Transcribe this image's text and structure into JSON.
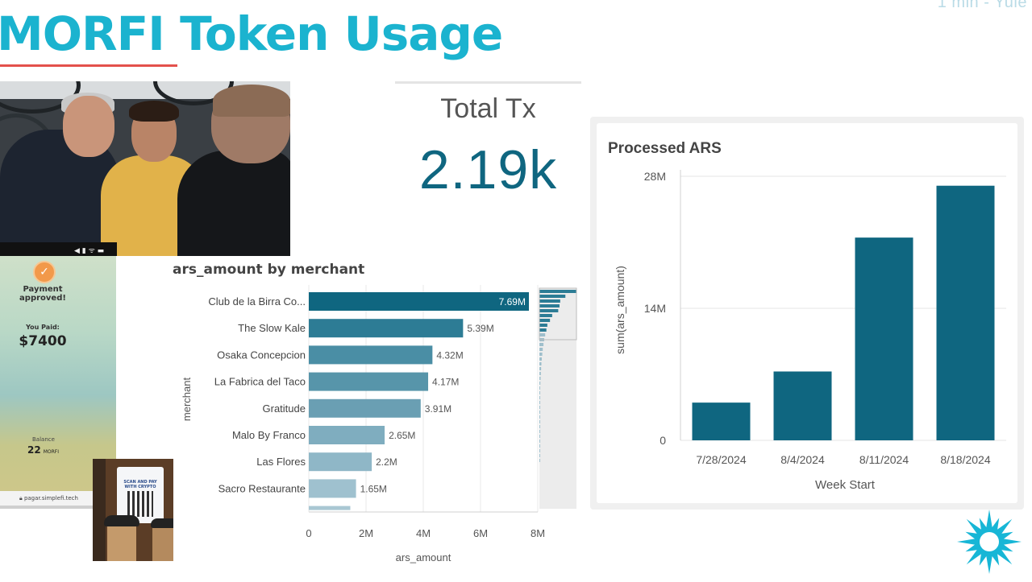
{
  "header": {
    "title": "MORFI Token Usage",
    "corner_text": "1 min - Yule"
  },
  "photo": {
    "status_icons": "◀  ▮  ᯤ ▬"
  },
  "phone": {
    "status_title": "Payment approved!",
    "you_paid_label": "You Paid:",
    "amount": "$7400",
    "balance_label": "Balance",
    "balance_value": "22",
    "balance_unit": "MORFI",
    "url": "pagar.simplefi.tech"
  },
  "cafe": {
    "sign_text": "SCAN AND PAY WITH CRYPTO"
  },
  "kpi": {
    "label": "Total Tx",
    "value": "2.19k"
  },
  "colors": {
    "title": "#1bb3cf",
    "underline": "#e3514c",
    "bar_dark": "#0f6680",
    "kpi_value": "#0f6680"
  },
  "chart_data": [
    {
      "type": "bar",
      "orientation": "horizontal",
      "title": "ars_amount by merchant",
      "xlabel": "ars_amount",
      "ylabel": "merchant",
      "categories": [
        "Club de la Birra Co...",
        "The Slow Kale",
        "Osaka Concepcion",
        "La Fabrica del Taco",
        "Gratitude",
        "Malo By Franco",
        "Las Flores",
        "Sacro Restaurante"
      ],
      "values": [
        7690000,
        5390000,
        4320000,
        4170000,
        3910000,
        2650000,
        2200000,
        1650000
      ],
      "value_labels": [
        "7.69M",
        "5.39M",
        "4.32M",
        "4.17M",
        "3.91M",
        "2.65M",
        "2.2M",
        "1.65M"
      ],
      "xlim": [
        0,
        8000000
      ],
      "x_ticks": [
        "0",
        "2M",
        "4M",
        "6M",
        "8M"
      ],
      "x_tick_values": [
        0,
        2000000,
        4000000,
        6000000,
        8000000
      ],
      "partial_next_value": 1450000,
      "minimap_values": [
        7690000,
        5390000,
        4320000,
        4170000,
        3910000,
        2650000,
        2200000,
        1650000,
        1450000,
        1200000,
        1000000,
        850000,
        700000,
        600000,
        500000,
        420000,
        360000,
        300000,
        250000,
        200000,
        160000,
        130000,
        100000,
        80000,
        60000,
        40000,
        30000,
        20000,
        15000,
        10000,
        8000,
        6000,
        4000,
        3000,
        2000,
        1000
      ],
      "grid": true
    },
    {
      "type": "bar",
      "title": "Processed ARS",
      "xlabel": "Week Start",
      "ylabel": "sum(ars_amount)",
      "categories": [
        "7/28/2024",
        "8/4/2024",
        "8/11/2024",
        "8/18/2024"
      ],
      "values": [
        4000000,
        7300000,
        21500000,
        27000000
      ],
      "ylim": [
        0,
        28000000
      ],
      "y_ticks": [
        "0",
        "14M",
        "28M"
      ],
      "y_tick_values": [
        0,
        14000000,
        28000000
      ],
      "grid": true
    }
  ]
}
